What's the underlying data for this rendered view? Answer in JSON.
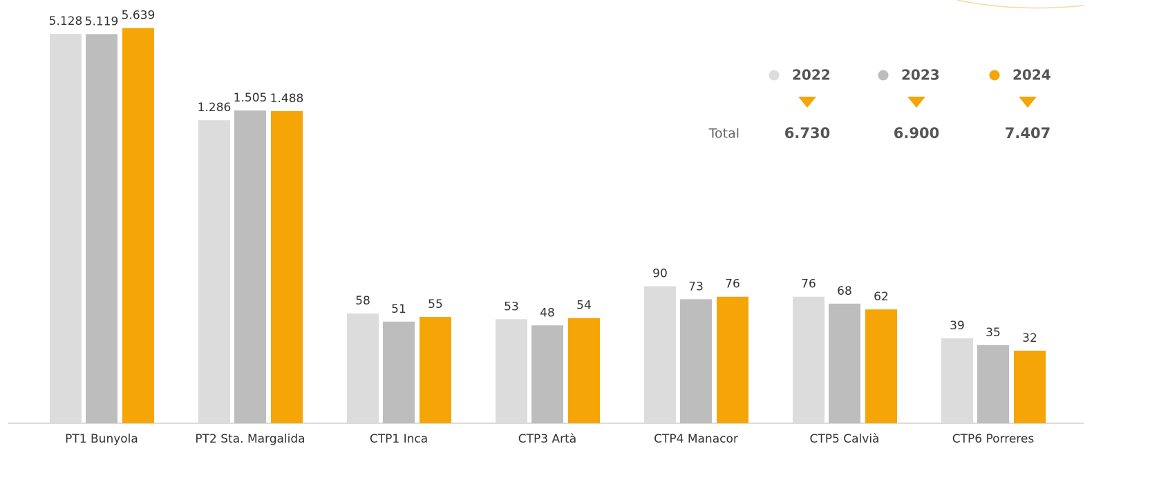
{
  "chart_data": {
    "type": "bar",
    "categories": [
      "PT1 Bunyola",
      "PT2 Sta. Margalida",
      "CTP1 Inca",
      "CTP3 Artà",
      "CTP4 Manacor",
      "CTP5 Calvià",
      "CTP6 Porreres"
    ],
    "series": [
      {
        "name": "2022",
        "color": "#dcdcdc",
        "values": [
          5128,
          1286,
          58,
          53,
          90,
          76,
          39
        ],
        "value_labels": [
          "5.128",
          "1.286",
          "58",
          "53",
          "90",
          "76",
          "39"
        ]
      },
      {
        "name": "2023",
        "color": "#bdbdbe",
        "values": [
          5119,
          1505,
          51,
          48,
          73,
          68,
          35
        ],
        "value_labels": [
          "5.119",
          "1.505",
          "51",
          "48",
          "73",
          "68",
          "35"
        ]
      },
      {
        "name": "2024",
        "color": "#f5a506",
        "values": [
          5639,
          1488,
          55,
          54,
          76,
          62,
          32
        ],
        "value_labels": [
          "5.639",
          "1.488",
          "55",
          "54",
          "76",
          "62",
          "32"
        ]
      }
    ],
    "total_label": "Total",
    "totals": [
      {
        "value": 6730,
        "label": "6.730"
      },
      {
        "value": 6900,
        "label": "6.900"
      },
      {
        "value": 7407,
        "label": "7.407"
      }
    ],
    "log_scale": true,
    "ylim": [
      10,
      6000
    ]
  }
}
